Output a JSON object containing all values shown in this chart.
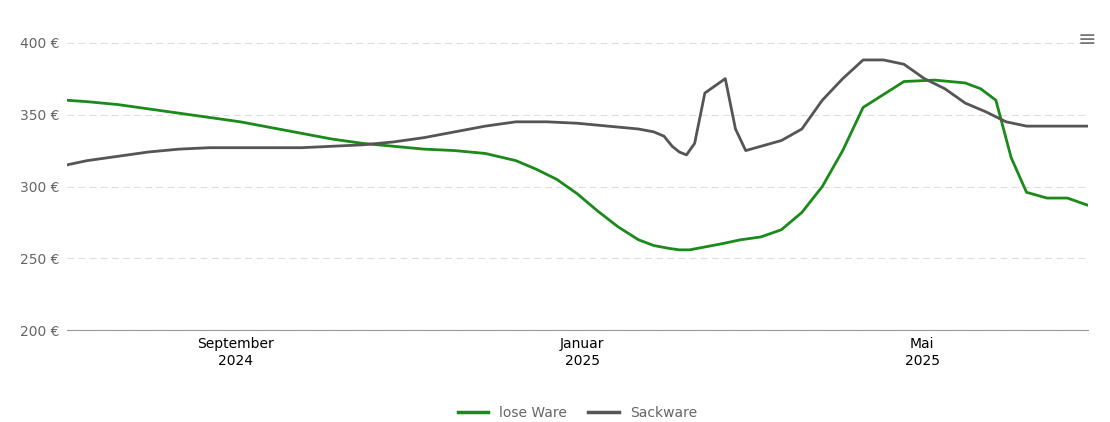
{
  "background_color": "#ffffff",
  "grid_color": "#dddddd",
  "axis_line_color": "#999999",
  "tick_color": "#666666",
  "yticks": [
    200,
    250,
    300,
    350,
    400
  ],
  "ytick_labels": [
    "200 €",
    "250 €",
    "300 €",
    "350 €",
    "400 €"
  ],
  "xtick_labels_line1": [
    "September",
    "Januar",
    "Mai"
  ],
  "xtick_labels_line2": [
    "2024",
    "2025",
    "2025"
  ],
  "legend_labels": [
    "lose Ware",
    "Sackware"
  ],
  "lose_ware_color": "#1a8a1a",
  "sackware_color": "#555555",
  "lose_ware_x": [
    0.0,
    0.02,
    0.05,
    0.08,
    0.11,
    0.14,
    0.17,
    0.2,
    0.23,
    0.26,
    0.29,
    0.32,
    0.35,
    0.38,
    0.41,
    0.44,
    0.46,
    0.48,
    0.5,
    0.52,
    0.54,
    0.56,
    0.575,
    0.59,
    0.6,
    0.61,
    0.625,
    0.64,
    0.66,
    0.68,
    0.7,
    0.72,
    0.74,
    0.76,
    0.78,
    0.82,
    0.85,
    0.88,
    0.895,
    0.91,
    0.925,
    0.94,
    0.96,
    0.98,
    1.0
  ],
  "lose_ware_y": [
    360,
    359,
    357,
    354,
    351,
    348,
    345,
    341,
    337,
    333,
    330,
    328,
    326,
    325,
    323,
    318,
    312,
    305,
    295,
    283,
    272,
    263,
    259,
    257,
    256,
    256,
    258,
    260,
    263,
    265,
    270,
    282,
    300,
    325,
    355,
    373,
    374,
    372,
    368,
    360,
    320,
    296,
    292,
    292,
    287
  ],
  "sackware_x": [
    0.0,
    0.02,
    0.05,
    0.08,
    0.11,
    0.14,
    0.17,
    0.2,
    0.23,
    0.26,
    0.29,
    0.32,
    0.35,
    0.38,
    0.41,
    0.44,
    0.47,
    0.5,
    0.53,
    0.56,
    0.575,
    0.585,
    0.593,
    0.6,
    0.607,
    0.615,
    0.625,
    0.635,
    0.645,
    0.655,
    0.665,
    0.68,
    0.7,
    0.72,
    0.74,
    0.76,
    0.78,
    0.8,
    0.82,
    0.84,
    0.86,
    0.88,
    0.9,
    0.92,
    0.94,
    0.96,
    0.98,
    1.0
  ],
  "sackware_y": [
    315,
    318,
    321,
    324,
    326,
    327,
    327,
    327,
    327,
    328,
    329,
    331,
    334,
    338,
    342,
    345,
    345,
    344,
    342,
    340,
    338,
    335,
    328,
    324,
    322,
    330,
    365,
    370,
    375,
    340,
    325,
    328,
    332,
    340,
    360,
    375,
    388,
    388,
    385,
    375,
    368,
    358,
    352,
    345,
    342,
    342,
    342,
    342
  ]
}
